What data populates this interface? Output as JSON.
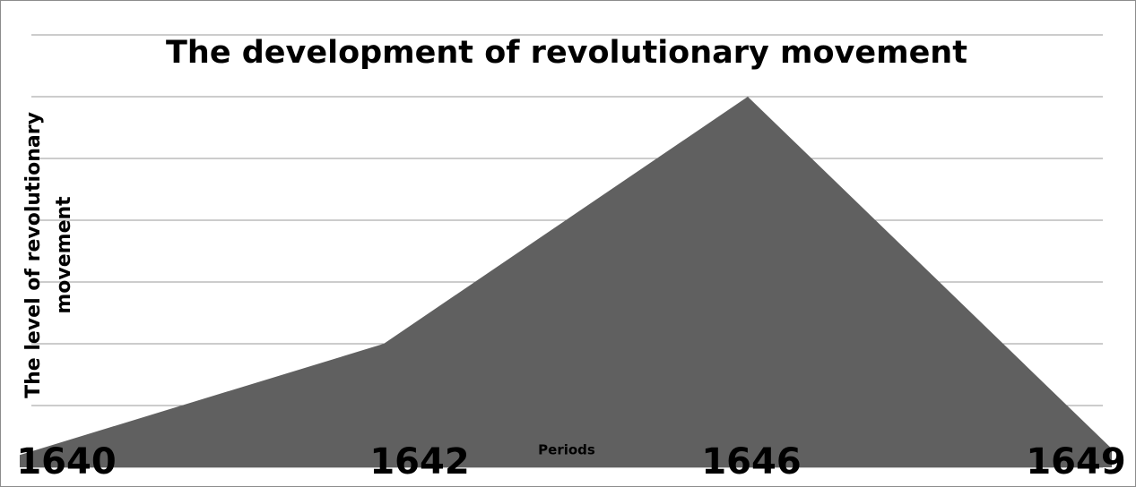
{
  "chart_data": {
    "type": "area",
    "title": "The development of revolutionary movement",
    "y_label": "The level of revolutionary movement",
    "x_label": "Periods",
    "categories": [
      "1640",
      "1642",
      "1646",
      "1649"
    ],
    "values": [
      0.2,
      2,
      6,
      0.3
    ],
    "color": "#606060",
    "ylim": [
      0,
      7
    ],
    "yticks": [
      0,
      1,
      2,
      3,
      4,
      5,
      6,
      7
    ],
    "grid": true
  }
}
